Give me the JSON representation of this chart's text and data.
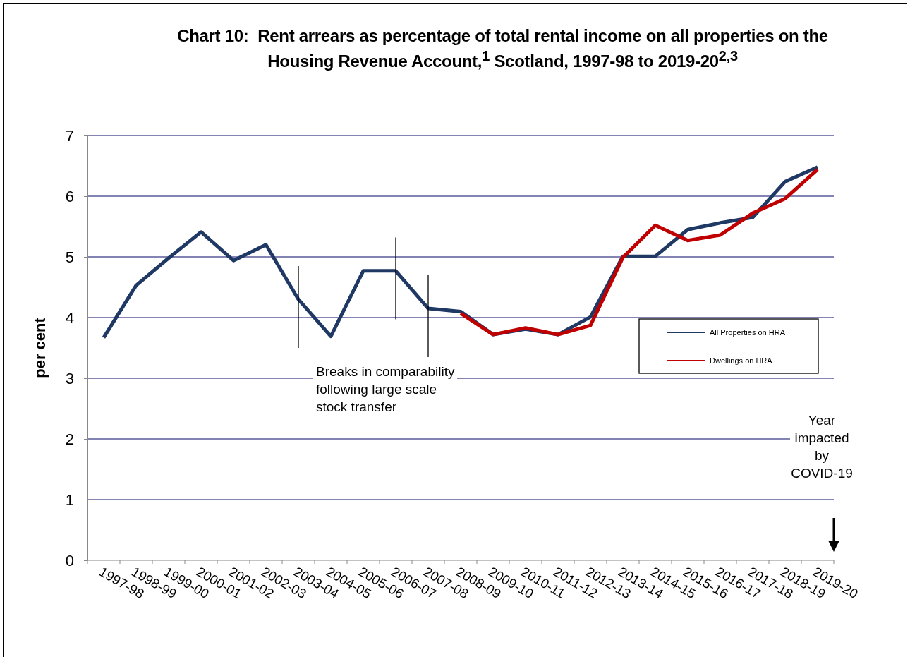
{
  "chart_data": {
    "type": "line",
    "title": "Chart 10:  Rent arrears as percentage of total rental income on all properties on the Housing Revenue Account,$^{1}$ Scotland, 1997-98 to 2019-20$^{2,3}$",
    "ylabel": "per cent",
    "categories": [
      "1997-98",
      "1998-99",
      "1999-00",
      "2000-01",
      "2001-02",
      "2002-03",
      "2003-04",
      "2004-05",
      "2005-06",
      "2006-07",
      "2007-08",
      "2008-09",
      "2009-10",
      "2010-11",
      "2011-12",
      "2012-13",
      "2013-14",
      "2014-15",
      "2015-16",
      "2016-17",
      "2017-18",
      "2018-19",
      "2019-20"
    ],
    "series": [
      {
        "name": "All Properties on HRA",
        "color": "#1f3864",
        "values": [
          3.67,
          4.53,
          4.98,
          5.41,
          4.94,
          5.2,
          4.3,
          3.69,
          4.77,
          4.77,
          4.15,
          4.1,
          3.72,
          3.81,
          3.72,
          4.01,
          5.01,
          5.01,
          5.45,
          5.56,
          5.65,
          6.24,
          6.48
        ]
      },
      {
        "name": "Dwellings on HRA",
        "color": "#c00000",
        "values": [
          null,
          null,
          null,
          null,
          null,
          null,
          null,
          null,
          null,
          null,
          null,
          4.07,
          3.72,
          3.83,
          3.72,
          3.87,
          4.99,
          5.52,
          5.27,
          5.36,
          5.72,
          5.96,
          6.44
        ]
      }
    ],
    "ylim": [
      0,
      7
    ],
    "yticks": [
      0,
      1,
      2,
      3,
      4,
      5,
      6,
      7
    ],
    "grid": "y",
    "legend": "right",
    "marker": "none",
    "line_style": "solid",
    "ref_lines": [
      {
        "axis": "x",
        "value": "2003-04",
        "color": "#000000"
      },
      {
        "axis": "x",
        "value": "2006-07",
        "color": "#000000"
      },
      {
        "axis": "x",
        "value": "2007-08",
        "color": "#000000"
      }
    ],
    "annotations": [
      "Breaks in comparability following large scale stock transfer",
      "Year impacted by COVID-19"
    ]
  }
}
